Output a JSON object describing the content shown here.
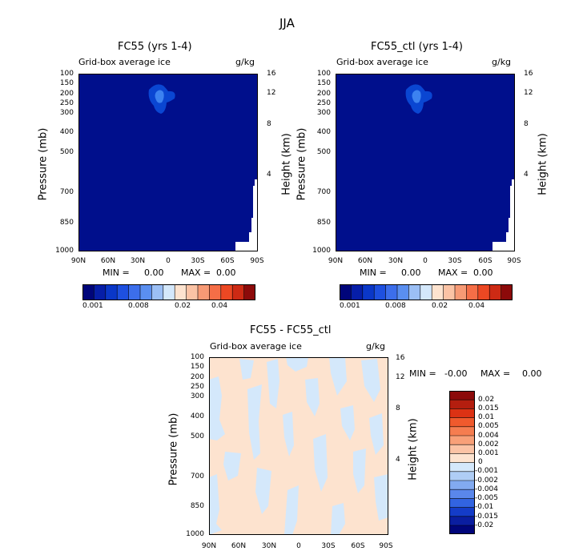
{
  "page_title": "JJA",
  "colors": {
    "background": "#ffffff",
    "field_dark_blue": "#000f8c",
    "contour_blue": "#0a46d2",
    "light_peach": "#fde3cf",
    "light_blue": "#d4e8fb"
  },
  "chart_data": [
    {
      "type": "heatmap",
      "title": "FC55 (yrs 1-4)",
      "subtitle": "Grid-box average ice",
      "units": "g/kg",
      "xlabel": "",
      "ylabel": "Pressure (mb)",
      "ylabel_right": "Height (km)",
      "x_ticks": [
        "90N",
        "60N",
        "30N",
        "0",
        "30S",
        "60S",
        "90S"
      ],
      "x_range": [
        90,
        -90
      ],
      "y_ticks": [
        "100",
        "150",
        "200",
        "250",
        "300",
        "400",
        "500",
        "700",
        "850",
        "1000"
      ],
      "y_range": [
        100,
        1000
      ],
      "height_ticks": [
        "16",
        "12",
        "8",
        "4"
      ],
      "min_label": "MIN =",
      "min_value": "0.00",
      "max_label": "MAX =",
      "max_value": "0.00",
      "colorbar_labels": [
        "0.001",
        "0.008",
        "0.02",
        "0.04"
      ],
      "feature": "small ice maximum near 200 mb, 10N"
    },
    {
      "type": "heatmap",
      "title": "FC55_ctl (yrs 1-4)",
      "subtitle": "Grid-box average ice",
      "units": "g/kg",
      "xlabel": "",
      "ylabel": "Pressure (mb)",
      "ylabel_right": "Height (km)",
      "x_ticks": [
        "90N",
        "60N",
        "30N",
        "0",
        "30S",
        "60S",
        "90S"
      ],
      "x_range": [
        90,
        -90
      ],
      "y_ticks": [
        "100",
        "150",
        "200",
        "250",
        "300",
        "400",
        "500",
        "700",
        "850",
        "1000"
      ],
      "y_range": [
        100,
        1000
      ],
      "height_ticks": [
        "16",
        "12",
        "8",
        "4"
      ],
      "min_label": "MIN =",
      "min_value": "0.00",
      "max_label": "MAX =",
      "max_value": "0.00",
      "colorbar_labels": [
        "0.001",
        "0.008",
        "0.02",
        "0.04"
      ],
      "feature": "small ice maximum near 200 mb, 10N"
    },
    {
      "type": "heatmap",
      "title": "FC55 - FC55_ctl",
      "subtitle": "Grid-box average ice",
      "units": "g/kg",
      "xlabel": "",
      "ylabel": "Pressure (mb)",
      "ylabel_right": "Height (km)",
      "x_ticks": [
        "90N",
        "60N",
        "30N",
        "0",
        "30S",
        "60S",
        "90S"
      ],
      "x_range": [
        90,
        -90
      ],
      "y_ticks": [
        "100",
        "150",
        "200",
        "250",
        "300",
        "400",
        "500",
        "700",
        "850",
        "1000"
      ],
      "y_range": [
        100,
        1000
      ],
      "height_ticks": [
        "16",
        "12",
        "8",
        "4"
      ],
      "min_label": "MIN =",
      "min_value": "-0.00",
      "max_label": "MAX =",
      "max_value": "0.00",
      "colorbar_labels": [
        "0.02",
        "0.015",
        "0.01",
        "0.005",
        "0.004",
        "0.002",
        "0.001",
        "0",
        "-0.001",
        "-0.002",
        "-0.004",
        "-0.005",
        "-0.01",
        "-0.015",
        "-0.02"
      ],
      "feature": "near-zero differences alternating between 0 to 0.001 and -0.001 to 0"
    }
  ]
}
